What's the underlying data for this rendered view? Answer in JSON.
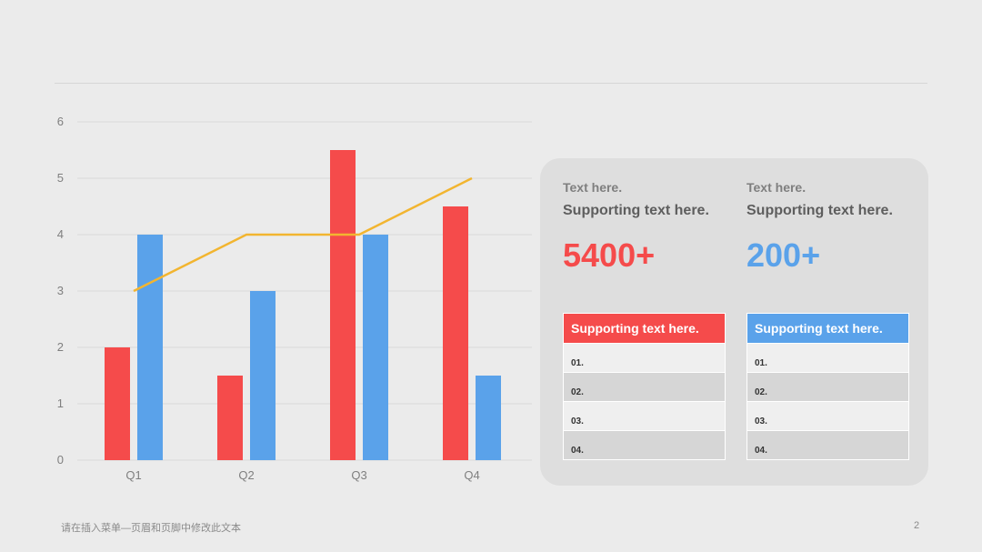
{
  "chart_data": {
    "type": "bar",
    "categories": [
      "Q1",
      "Q2",
      "Q3",
      "Q4"
    ],
    "series": [
      {
        "type": "bar",
        "color": "#f54b4b",
        "values": [
          2,
          1.5,
          5.5,
          4.5
        ]
      },
      {
        "type": "bar",
        "color": "#5aa2ea",
        "values": [
          4,
          3,
          4,
          1.5
        ]
      },
      {
        "type": "line",
        "color": "#f2b530",
        "values": [
          3,
          4,
          4,
          5
        ]
      }
    ],
    "ylim": [
      0,
      6
    ],
    "yticks": [
      "0",
      "1",
      "2",
      "3",
      "4",
      "5",
      "6"
    ],
    "grid": true
  },
  "panel": {
    "left": {
      "label": "Text here.",
      "support": "Supporting text here.",
      "number": "5400+",
      "color": "#f54b4b",
      "list_header": "Supporting text here.",
      "items": [
        "01.",
        "02.",
        "03.",
        "04."
      ]
    },
    "right": {
      "label": "Text here.",
      "support": "Supporting text here.",
      "number": "200+",
      "color": "#5aa2ea",
      "list_header": "Supporting text here.",
      "items": [
        "01.",
        "02.",
        "03.",
        "04."
      ]
    }
  },
  "footer": {
    "text": "请在插入菜单—页眉和页脚中修改此文本",
    "page_number": "2"
  }
}
